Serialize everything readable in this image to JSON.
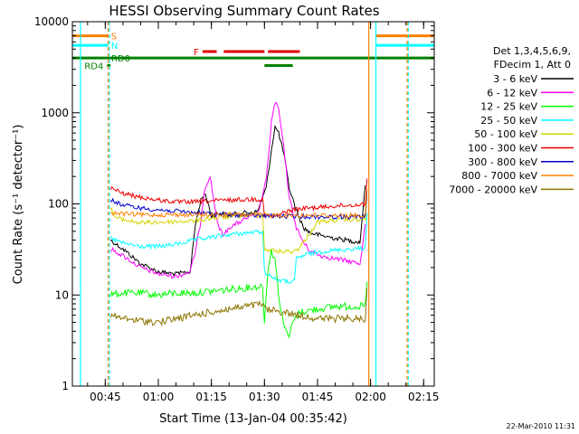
{
  "chart_data": {
    "type": "line",
    "title": "HESSI Observing Summary Count Rates",
    "xlabel": "Start Time (13-Jan-04 00:35:42)",
    "ylabel": "Count Rate (s⁻¹ detector⁻¹)",
    "y_scale": "log",
    "ylim": [
      1,
      10000
    ],
    "xlim": [
      "00:35:42",
      "02:18:00"
    ],
    "x_ticks": [
      "00:45",
      "01:00",
      "01:15",
      "01:30",
      "01:45",
      "02:00",
      "02:15"
    ],
    "y_ticks": [
      "1",
      "10",
      "100",
      "1000",
      "10000"
    ],
    "grid": false,
    "legend_position": "right",
    "legend_header": [
      "Det 1,3,4,5,6,9,",
      "FDecim 1, Att 0"
    ],
    "colors": {
      "orange": "#ff8000",
      "cyan": "#00ffff",
      "red": "#e00000",
      "green": "#008000",
      "brown": "#9c6b00"
    },
    "series": [
      {
        "name": "3 - 6 keV",
        "color": "#000000",
        "points": [
          [
            "00:46:30",
            40
          ],
          [
            "00:50:00",
            32
          ],
          [
            "00:55:00",
            22
          ],
          [
            "01:00:00",
            18
          ],
          [
            "01:05:00",
            17
          ],
          [
            "01:09:00",
            18
          ],
          [
            "01:10:30",
            60
          ],
          [
            "01:12:00",
            110
          ],
          [
            "01:13:00",
            130
          ],
          [
            "01:14:00",
            105
          ],
          [
            "01:15:00",
            72
          ],
          [
            "01:16:30",
            78
          ],
          [
            "01:18:00",
            78
          ],
          [
            "01:20:00",
            75
          ],
          [
            "01:22:00",
            78
          ],
          [
            "01:25:00",
            80
          ],
          [
            "01:28:00",
            82
          ],
          [
            "01:30:30",
            150
          ],
          [
            "01:32:00",
            400
          ],
          [
            "01:33:00",
            700
          ],
          [
            "01:34:00",
            600
          ],
          [
            "01:35:30",
            350
          ],
          [
            "01:37:00",
            150
          ],
          [
            "01:39:00",
            85
          ],
          [
            "01:41:00",
            55
          ],
          [
            "01:43:00",
            48
          ],
          [
            "01:46:00",
            45
          ],
          [
            "01:50:00",
            42
          ],
          [
            "01:55:00",
            39
          ],
          [
            "01:57:00",
            38
          ],
          [
            "01:58:30",
            160
          ]
        ]
      },
      {
        "name": "6 - 12 keV",
        "color": "#ff00ff",
        "points": [
          [
            "00:46:30",
            32
          ],
          [
            "00:50:00",
            27
          ],
          [
            "00:55:00",
            20
          ],
          [
            "01:00:00",
            17
          ],
          [
            "01:05:00",
            16
          ],
          [
            "01:09:00",
            18
          ],
          [
            "01:10:30",
            30
          ],
          [
            "01:12:00",
            65
          ],
          [
            "01:13:00",
            140
          ],
          [
            "01:14:00",
            180
          ],
          [
            "01:14:40",
            200
          ],
          [
            "01:15:30",
            120
          ],
          [
            "01:17:00",
            55
          ],
          [
            "01:18:30",
            45
          ],
          [
            "01:20:00",
            55
          ],
          [
            "01:22:00",
            60
          ],
          [
            "01:25:00",
            70
          ],
          [
            "01:28:00",
            75
          ],
          [
            "01:30:30",
            180
          ],
          [
            "01:32:00",
            800
          ],
          [
            "01:33:00",
            1300
          ],
          [
            "01:34:00",
            1100
          ],
          [
            "01:35:30",
            400
          ],
          [
            "01:37:00",
            120
          ],
          [
            "01:39:00",
            55
          ],
          [
            "01:41:00",
            38
          ],
          [
            "01:43:00",
            30
          ],
          [
            "01:46:00",
            27
          ],
          [
            "01:50:00",
            25
          ],
          [
            "01:55:00",
            23
          ],
          [
            "01:57:00",
            22
          ],
          [
            "01:58:30",
            60
          ]
        ]
      },
      {
        "name": "12 - 25 keV",
        "color": "#00ff00",
        "points": [
          [
            "00:46:30",
            10
          ],
          [
            "00:50:00",
            10.5
          ],
          [
            "00:55:00",
            10.5
          ],
          [
            "01:00:00",
            10
          ],
          [
            "01:05:00",
            10.5
          ],
          [
            "01:10:00",
            10.5
          ],
          [
            "01:15:00",
            11
          ],
          [
            "01:20:00",
            11.5
          ],
          [
            "01:25:00",
            12
          ],
          [
            "01:29:30",
            12.5
          ],
          [
            "01:30:00",
            5
          ],
          [
            "01:30:30",
            10
          ],
          [
            "01:31:00",
            20
          ],
          [
            "01:32:00",
            30
          ],
          [
            "01:33:00",
            25
          ],
          [
            "01:34:00",
            10
          ],
          [
            "01:35:00",
            6
          ],
          [
            "01:36:00",
            4
          ],
          [
            "01:37:00",
            3.5
          ],
          [
            "01:38:00",
            5
          ],
          [
            "01:40:00",
            6.5
          ],
          [
            "01:45:00",
            7
          ],
          [
            "01:50:00",
            7.5
          ],
          [
            "01:55:00",
            7.5
          ],
          [
            "01:58:30",
            7.5
          ],
          [
            "01:59:00",
            14
          ]
        ]
      },
      {
        "name": "25 - 50 keV",
        "color": "#00ffff",
        "points": [
          [
            "00:46:30",
            42
          ],
          [
            "00:50:00",
            37
          ],
          [
            "00:55:00",
            34
          ],
          [
            "01:00:00",
            34
          ],
          [
            "01:05:00",
            36
          ],
          [
            "01:10:00",
            40
          ],
          [
            "01:15:00",
            43
          ],
          [
            "01:20:00",
            46
          ],
          [
            "01:25:00",
            48
          ],
          [
            "01:29:30",
            50
          ],
          [
            "01:30:00",
            18
          ],
          [
            "01:33:00",
            15
          ],
          [
            "01:36:00",
            14
          ],
          [
            "01:38:30",
            14
          ],
          [
            "01:39:00",
            25
          ],
          [
            "01:42:00",
            28
          ],
          [
            "01:46:00",
            30
          ],
          [
            "01:50:00",
            31
          ],
          [
            "01:55:00",
            32
          ],
          [
            "01:58:30",
            33
          ],
          [
            "01:59:00",
            80
          ]
        ]
      },
      {
        "name": "50 - 100 keV",
        "color": "#d4d400",
        "points": [
          [
            "00:46:30",
            90
          ],
          [
            "00:48:00",
            70
          ],
          [
            "00:52:00",
            65
          ],
          [
            "00:55:00",
            62
          ],
          [
            "01:00:00",
            63
          ],
          [
            "01:05:00",
            64
          ],
          [
            "01:10:00",
            65
          ],
          [
            "01:15:00",
            70
          ],
          [
            "01:20:00",
            72
          ],
          [
            "01:25:00",
            75
          ],
          [
            "01:29:30",
            75
          ],
          [
            "01:30:00",
            32
          ],
          [
            "01:34:00",
            30
          ],
          [
            "01:38:00",
            30
          ],
          [
            "01:40:00",
            33
          ],
          [
            "01:45:00",
            63
          ],
          [
            "01:50:00",
            66
          ],
          [
            "01:55:00",
            67
          ],
          [
            "01:58:30",
            68
          ],
          [
            "01:59:00",
            120
          ]
        ]
      },
      {
        "name": "100 - 300 keV",
        "color": "#ee0000",
        "points": [
          [
            "00:46:30",
            150
          ],
          [
            "00:50:00",
            130
          ],
          [
            "00:55:00",
            118
          ],
          [
            "01:00:00",
            110
          ],
          [
            "01:05:00",
            105
          ],
          [
            "01:10:00",
            105
          ],
          [
            "01:15:00",
            108
          ],
          [
            "01:20:00",
            110
          ],
          [
            "01:25:00",
            112
          ],
          [
            "01:29:30",
            113
          ],
          [
            "01:30:00",
            75
          ],
          [
            "01:32:00",
            72
          ],
          [
            "01:34:00",
            75
          ],
          [
            "01:36:00",
            82
          ],
          [
            "01:38:00",
            86
          ],
          [
            "01:42:00",
            90
          ],
          [
            "01:46:00",
            92
          ],
          [
            "01:50:00",
            95
          ],
          [
            "01:55:00",
            97
          ],
          [
            "01:58:30",
            100
          ],
          [
            "01:59:00",
            190
          ]
        ]
      },
      {
        "name": "300 - 800 keV",
        "color": "#0000cc",
        "points": [
          [
            "00:46:30",
            110
          ],
          [
            "00:50:00",
            97
          ],
          [
            "00:55:00",
            90
          ],
          [
            "01:00:00",
            86
          ],
          [
            "01:05:00",
            83
          ],
          [
            "01:10:00",
            80
          ],
          [
            "01:15:00",
            78
          ],
          [
            "01:20:00",
            76
          ],
          [
            "01:25:00",
            75
          ],
          [
            "01:30:00",
            74
          ],
          [
            "01:35:00",
            73
          ],
          [
            "01:40:00",
            73
          ],
          [
            "01:45:00",
            72
          ],
          [
            "01:50:00",
            72
          ],
          [
            "01:55:00",
            72
          ],
          [
            "01:58:30",
            72
          ],
          [
            "01:59:00",
            140
          ]
        ]
      },
      {
        "name": "800 - 7000 keV",
        "color": "#ff8000",
        "points": [
          [
            "00:46:30",
            80
          ],
          [
            "00:50:00",
            78
          ],
          [
            "00:55:00",
            76
          ],
          [
            "01:00:00",
            76
          ],
          [
            "01:05:00",
            76
          ],
          [
            "01:10:00",
            76
          ],
          [
            "01:15:00",
            76
          ],
          [
            "01:20:00",
            76
          ],
          [
            "01:25:00",
            76
          ],
          [
            "01:30:00",
            76
          ],
          [
            "01:35:00",
            75
          ],
          [
            "01:40:00",
            75
          ],
          [
            "01:45:00",
            75
          ],
          [
            "01:50:00",
            75
          ],
          [
            "01:55:00",
            75
          ],
          [
            "01:58:30",
            75
          ],
          [
            "01:59:00",
            150
          ]
        ]
      },
      {
        "name": "7000 - 20000 keV",
        "color": "#8b7400",
        "points": [
          [
            "00:46:30",
            6
          ],
          [
            "00:50:00",
            5.5
          ],
          [
            "00:55:00",
            5.2
          ],
          [
            "01:00:00",
            5
          ],
          [
            "01:05:00",
            5.5
          ],
          [
            "01:10:00",
            6
          ],
          [
            "01:15:00",
            6.5
          ],
          [
            "01:20:00",
            7
          ],
          [
            "01:25:00",
            7.5
          ],
          [
            "01:29:30",
            8
          ],
          [
            "01:30:00",
            7
          ],
          [
            "01:35:00",
            6.5
          ],
          [
            "01:40:00",
            6
          ],
          [
            "01:45:00",
            5.5
          ],
          [
            "01:50:00",
            5.5
          ],
          [
            "01:55:00",
            5.5
          ],
          [
            "01:58:30",
            5.5
          ],
          [
            "01:59:00",
            12
          ]
        ]
      }
    ],
    "flags": [
      {
        "label": "S",
        "color": "#ff8000",
        "y": 7000,
        "segments": [
          [
            "00:35:42",
            "00:45:50"
          ],
          [
            "02:01:30",
            "02:18:00"
          ]
        ]
      },
      {
        "label": "N",
        "color": "#00ffff",
        "y": 5500,
        "segments": [
          [
            "00:35:42",
            "00:45:50"
          ],
          [
            "02:01:30",
            "02:18:00"
          ]
        ]
      },
      {
        "label": "F",
        "color": "#e00000",
        "y": 4700,
        "segments": [
          [
            "01:12:30",
            "01:16:30"
          ],
          [
            "01:18:30",
            "01:30:00"
          ],
          [
            "01:31:00",
            "01:40:00"
          ]
        ]
      },
      {
        "label": "RD0",
        "color": "#008000",
        "y": 4000,
        "segments": [
          [
            "00:35:42",
            "02:18:00"
          ]
        ]
      },
      {
        "label": "RD4",
        "color": "#008000",
        "y": 3300,
        "segments": [
          [
            "00:45:30",
            "00:46:30"
          ],
          [
            "01:30:00",
            "01:38:00"
          ]
        ]
      }
    ],
    "vertical_markers": [
      {
        "color": "#00ffff",
        "time": "00:38:00",
        "style": "solid"
      },
      {
        "color": "#ff8000",
        "time": "00:45:50",
        "style": "dashed"
      },
      {
        "color": "#00ffff",
        "time": "00:46:10",
        "style": "dashed"
      },
      {
        "color": "#ff8000",
        "time": "01:59:30",
        "style": "solid"
      },
      {
        "color": "#00ffff",
        "time": "02:01:30",
        "style": "solid"
      },
      {
        "color": "#00ffff",
        "time": "02:10:40",
        "style": "dashed"
      },
      {
        "color": "#ff8000",
        "time": "02:10:20",
        "style": "dashed"
      }
    ]
  },
  "footer": {
    "timestamp": "22-Mar-2010 11:31"
  }
}
